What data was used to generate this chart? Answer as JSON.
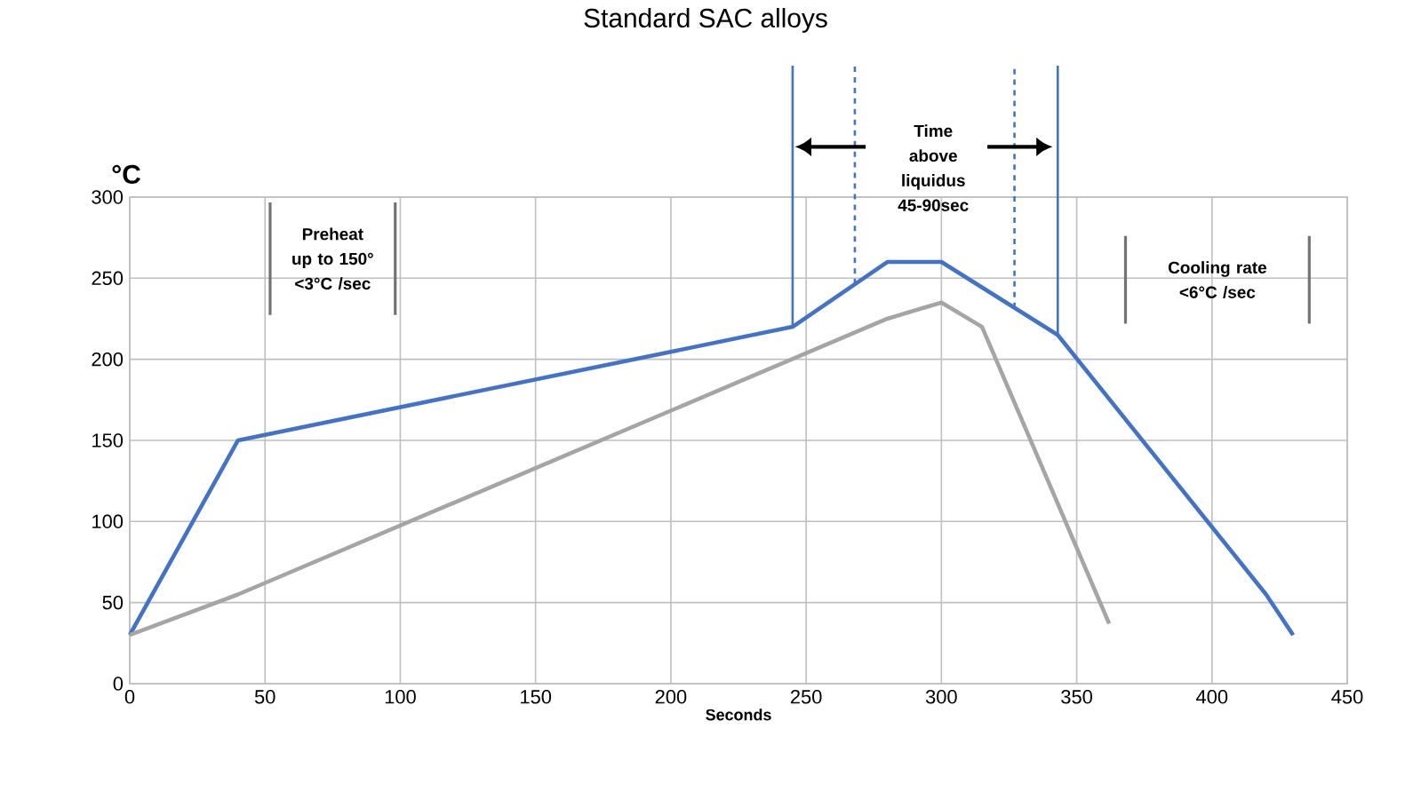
{
  "chart_data": {
    "type": "line",
    "title": "Standard SAC alloys",
    "xlabel": "Seconds",
    "ylabel": "°C",
    "series": [
      {
        "color": "#4472c4",
        "x": [
          0,
          40,
          245,
          280,
          300,
          343,
          420,
          430
        ],
        "values": [
          30,
          150,
          220,
          260,
          260,
          215,
          55,
          30
        ]
      },
      {
        "color": "#a5a5a5",
        "x": [
          0,
          40,
          280,
          300,
          315,
          362
        ],
        "values": [
          30,
          55,
          225,
          235,
          220,
          37
        ]
      }
    ],
    "xlim": [
      0,
      450
    ],
    "ylim": [
      0,
      300
    ],
    "xticks": [
      0,
      50,
      100,
      150,
      200,
      250,
      300,
      350,
      400,
      450
    ],
    "yticks": [
      0,
      50,
      100,
      150,
      200,
      250,
      300
    ],
    "grid": true,
    "line_style": "solid",
    "ref_lines": [
      {
        "axis": "x",
        "value": 245,
        "color": "#4472c4",
        "line_style": "solid"
      },
      {
        "axis": "x",
        "value": 268,
        "color": "#4472c4",
        "line_style": "dashed"
      },
      {
        "axis": "x",
        "value": 327,
        "color": "#4472c4",
        "line_style": "dashed"
      },
      {
        "axis": "x",
        "value": 343,
        "color": "#4472c4",
        "line_style": "solid"
      }
    ],
    "annotations": [
      "**Preheat up to 150° <3°C /sec**",
      "**Time above liquidus 45-90sec**",
      "**Cooling rate <6°C /sec**"
    ]
  }
}
